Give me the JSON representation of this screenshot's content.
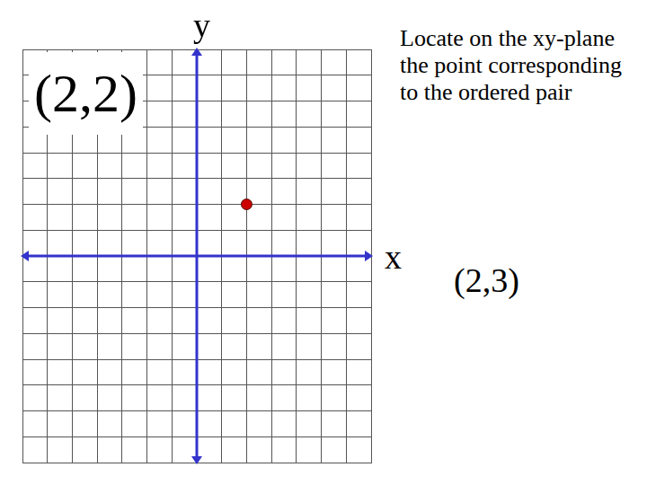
{
  "chart_data": {
    "type": "scatter",
    "title": "Locate on the xy-plane the point corresponding to the ordered pair",
    "x_label": "x",
    "y_label": "y",
    "annotations": [
      "(2,2)",
      "(2,3)"
    ],
    "x": [
      2
    ],
    "values": [
      2
    ],
    "color": "#cc0000",
    "marker": "circle",
    "xlim": [
      -7,
      7
    ],
    "xticks": [
      -7,
      -6,
      -5,
      -4,
      -3,
      -2,
      -1,
      0,
      1,
      2,
      3,
      4,
      5,
      6,
      7
    ],
    "ylim": [
      -8,
      8
    ],
    "yticks": [
      -8,
      -7,
      -6,
      -5,
      -4,
      -3,
      -2,
      -1,
      0,
      1,
      2,
      3,
      4,
      5,
      6,
      7,
      8
    ],
    "grid": true,
    "tick_labels": false
  }
}
